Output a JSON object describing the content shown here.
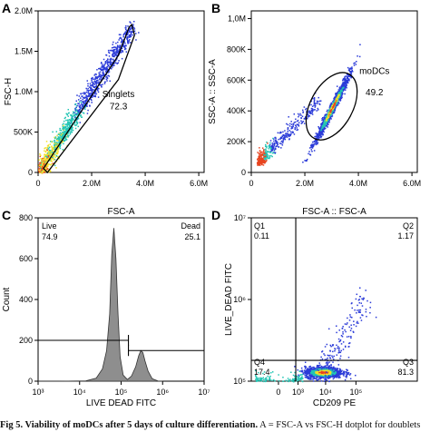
{
  "colors": {
    "axis": "#000000",
    "density_low": "#2b3bd8",
    "density_mid": "#22c5b4",
    "density_high": "#f2e02a",
    "density_peak": "#e8441f",
    "histogram_fill": "#8e8e8e"
  },
  "caption": {
    "bold": "Fig 5. Viability of moDCs after 5 days of culture differentiation.",
    "text": " A = FSC-A vs FSC-H dotplot for doublets"
  },
  "chart_data": [
    {
      "panel": "A",
      "type": "scatter",
      "title": "",
      "xlabel": "",
      "ylabel": "FSC-H",
      "xlim": [
        0,
        6200000
      ],
      "ylim": [
        0,
        2000000
      ],
      "xticks": [
        0,
        2000000,
        4000000,
        6000000
      ],
      "xtick_labels": [
        "0",
        "2.0M",
        "4.0M",
        "6.0M"
      ],
      "yticks": [
        0,
        500000,
        1000000,
        1500000,
        2000000
      ],
      "ytick_labels": [
        "0",
        "500K",
        "1.0M",
        "1.5M",
        "2.0M"
      ],
      "gate": {
        "name": "Singlets",
        "value": "72.3",
        "shape": "polygon",
        "vertices": [
          [
            200000,
            50000
          ],
          [
            3000000,
            1450000
          ],
          [
            3400000,
            1800000
          ],
          [
            3500000,
            1830000
          ],
          [
            3600000,
            1700000
          ],
          [
            3000000,
            1150000
          ],
          [
            350000,
            0
          ]
        ]
      },
      "population": {
        "shape": "diagonal band",
        "from": [
          100000,
          50000
        ],
        "to": [
          3500000,
          1800000
        ],
        "dense_center": [
          600000,
          350000
        ]
      }
    },
    {
      "panel": "B",
      "type": "scatter",
      "title": "",
      "xlabel": "",
      "ylabel": "SSC-A :: SSC-A",
      "xlim": [
        0,
        6200000
      ],
      "ylim": [
        0,
        1050000
      ],
      "xticks": [
        0,
        2000000,
        4000000,
        6000000
      ],
      "xtick_labels": [
        "0",
        "2.0M",
        "4.0M",
        "6.0M"
      ],
      "yticks": [
        0,
        200000,
        400000,
        600000,
        800000,
        1000000
      ],
      "ytick_labels": [
        "0",
        "200K",
        "400K",
        "600K",
        "800K",
        "1,0M"
      ],
      "gate": {
        "name": "moDCs",
        "value": "49.2",
        "shape": "ellipse",
        "center": [
          3000000,
          430000
        ],
        "semi_axes": [
          700000,
          250000
        ],
        "rotation_deg": -52
      },
      "population": {
        "main_center": [
          3000000,
          420000
        ],
        "debris_center": [
          200000,
          50000
        ]
      }
    },
    {
      "panel": "C",
      "type": "histogram",
      "title": "FSC-A",
      "xlabel": "LIVE DEAD FITC",
      "ylabel": "Count",
      "x_scale": "log",
      "xlim": [
        1000,
        10000000
      ],
      "ylim": [
        0,
        800
      ],
      "xticks": [
        1000,
        10000,
        100000,
        1000000,
        10000000
      ],
      "xtick_labels": [
        "10³",
        "10⁴",
        "10⁵",
        "10⁶",
        "10⁷"
      ],
      "yticks": [
        0,
        200,
        400,
        600,
        800
      ],
      "ytick_labels": [
        "0",
        "200",
        "400",
        "600",
        "800"
      ],
      "peaks": [
        {
          "x": 70000,
          "count": 750
        },
        {
          "x": 300000,
          "count": 150
        }
      ],
      "bin_edges_log10": [
        3.0,
        4.0,
        4.3,
        4.5,
        4.6,
        4.7,
        4.75,
        4.8,
        4.85,
        4.9,
        4.95,
        5.0,
        5.1,
        5.2,
        5.3,
        5.4,
        5.45,
        5.5,
        5.55,
        5.6,
        5.7,
        5.8,
        6.0
      ],
      "counts": [
        0,
        2,
        15,
        60,
        150,
        330,
        620,
        750,
        600,
        330,
        120,
        30,
        8,
        25,
        70,
        125,
        150,
        140,
        100,
        50,
        12,
        0
      ],
      "markers": [
        {
          "name": "Live",
          "value": "74.9",
          "x_range": [
            1000,
            150000
          ],
          "y": 200
        },
        {
          "name": "Dead",
          "value": "25.1",
          "x_range": [
            150000,
            10000000
          ],
          "y": 150
        }
      ]
    },
    {
      "panel": "D",
      "type": "scatter",
      "title": "FSC-A :: FSC-A",
      "xlabel": "CD209 PE",
      "ylabel": "LIVE_DEAD FITC",
      "x_scale": "biexponential",
      "y_scale": "log",
      "xlim": [
        -2000,
        10000000
      ],
      "ylim": [
        100000,
        10000000
      ],
      "xticks": [
        0,
        1000,
        10000,
        100000
      ],
      "xtick_labels": [
        "0",
        "10³",
        "10⁴",
        "10⁵"
      ],
      "yticks": [
        100000,
        1000000,
        10000000
      ],
      "ytick_labels": [
        "10⁵",
        "10⁶",
        "10⁷"
      ],
      "quadrant_divider": {
        "x": 800,
        "y": 180000
      },
      "quadrants": [
        {
          "name": "Q1",
          "value": "0.11"
        },
        {
          "name": "Q2",
          "value": "1.17"
        },
        {
          "name": "Q3",
          "value": "81.3"
        },
        {
          "name": "Q4",
          "value": "17.4"
        }
      ],
      "population": {
        "main_center": [
          8000,
          130000
        ],
        "tail_toward": [
          200000,
          1000000
        ]
      }
    }
  ]
}
